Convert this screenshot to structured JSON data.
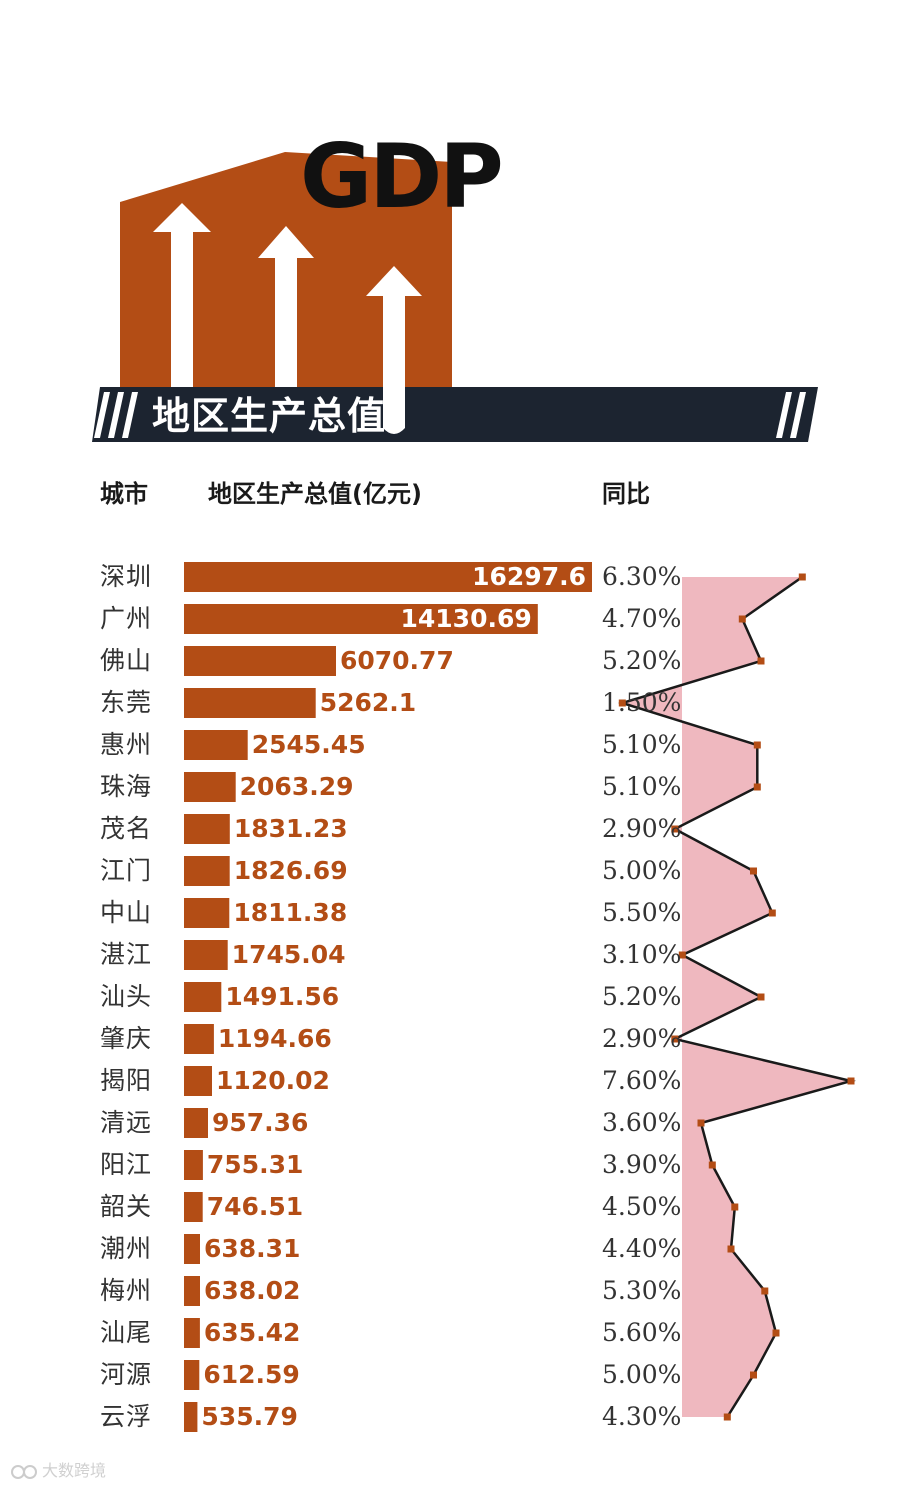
{
  "header": {
    "title": "GDP",
    "banner": "地区生产总值"
  },
  "columns": {
    "city": "城市",
    "gdp": "地区生产总值(亿元)",
    "yoy": "同比"
  },
  "watermark": "大数跨境",
  "colors": {
    "bar": "#b34d15",
    "banner": "#1c2430",
    "area": "#efb8bf",
    "point": "#b34d15",
    "line": "#1a1a1a"
  },
  "chart_data": {
    "type": "bar",
    "title": "地区生产总值",
    "categories": [
      "深圳",
      "广州",
      "佛山",
      "东莞",
      "惠州",
      "珠海",
      "茂名",
      "江门",
      "中山",
      "湛江",
      "汕头",
      "肇庆",
      "揭阳",
      "清远",
      "阳江",
      "韶关",
      "潮州",
      "梅州",
      "汕尾",
      "河源",
      "云浮"
    ],
    "series": [
      {
        "name": "地区生产总值(亿元)",
        "type": "bar",
        "values": [
          16297.6,
          14130.69,
          6070.77,
          5262.1,
          2545.45,
          2063.29,
          1831.23,
          1826.69,
          1811.38,
          1745.04,
          1491.56,
          1194.66,
          1120.02,
          957.36,
          755.31,
          746.51,
          638.31,
          638.02,
          635.42,
          612.59,
          535.79
        ],
        "labels": [
          "16297.6",
          "14130.69",
          "6070.77",
          "5262.1",
          "2545.45",
          "2063.29",
          "1831.23",
          "1826.69",
          "1811.38",
          "1745.04",
          "1491.56",
          "1194.66",
          "1120.02",
          "957.36",
          "755.31",
          "746.51",
          "638.31",
          "638.02",
          "635.42",
          "612.59",
          "535.79"
        ]
      },
      {
        "name": "同比",
        "type": "area-line",
        "values": [
          6.3,
          4.7,
          5.2,
          1.5,
          5.1,
          5.1,
          2.9,
          5.0,
          5.5,
          3.1,
          5.2,
          2.9,
          7.6,
          3.6,
          3.9,
          4.5,
          4.4,
          5.3,
          5.6,
          5.0,
          4.3
        ],
        "labels": [
          "6.30%",
          "4.70%",
          "5.20%",
          "1.50%",
          "5.10%",
          "5.10%",
          "2.90%",
          "5.00%",
          "5.50%",
          "3.10%",
          "5.20%",
          "2.90%",
          "7.60%",
          "3.60%",
          "3.90%",
          "4.50%",
          "4.40%",
          "5.30%",
          "5.60%",
          "5.00%",
          "4.30%"
        ],
        "range": [
          0,
          8
        ]
      }
    ],
    "xlabel": "",
    "ylabel": "城市"
  }
}
